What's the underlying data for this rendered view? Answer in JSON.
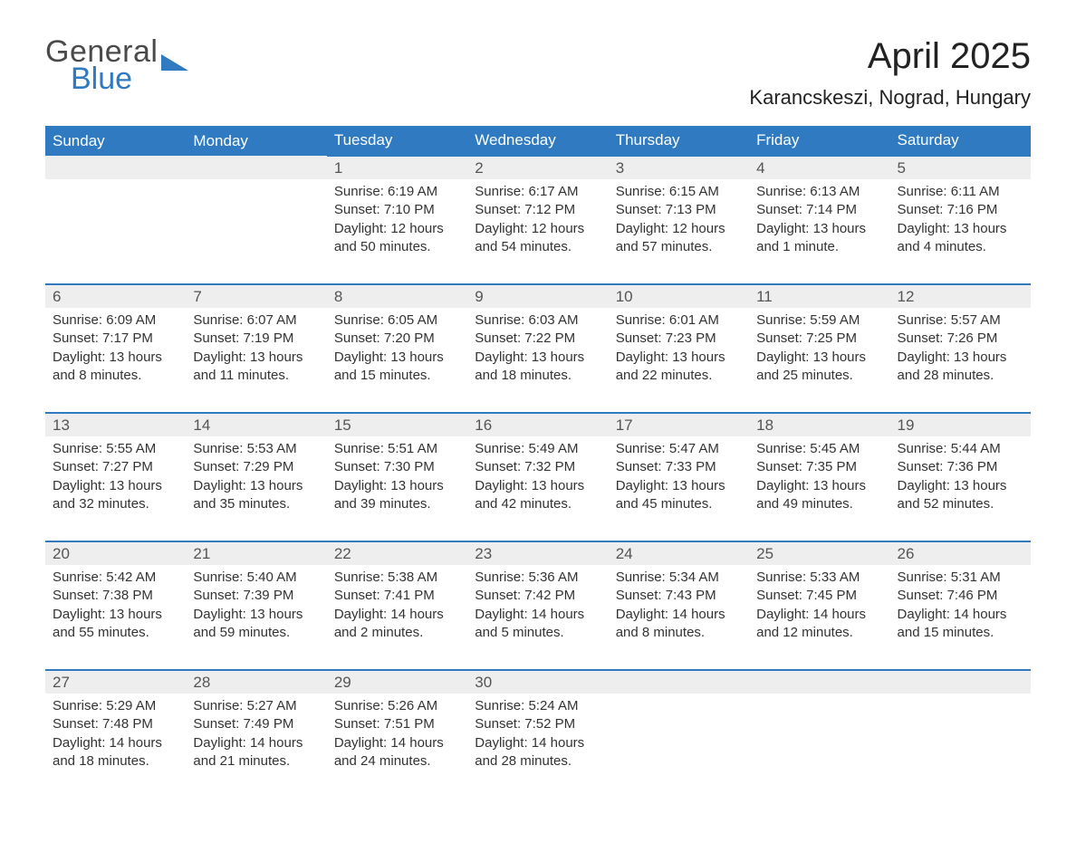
{
  "brand": {
    "part1": "General",
    "part2": "Blue",
    "logo_color": "#2f7ac0",
    "text_color": "#4a4a4a"
  },
  "header": {
    "month_title": "April 2025",
    "location": "Karancskeszi, Nograd, Hungary"
  },
  "calendar": {
    "type": "table",
    "columns": [
      "Sunday",
      "Monday",
      "Tuesday",
      "Wednesday",
      "Thursday",
      "Friday",
      "Saturday"
    ],
    "column_header_bg": "#2f7ac0",
    "column_header_color": "#ffffff",
    "daynum_row_bg": "#eeeeee",
    "row_separator_color": "#2f7ac0",
    "text_color": "#333333",
    "body_fontsize": 15,
    "header_fontsize": 17,
    "weeks": [
      [
        null,
        null,
        {
          "day": "1",
          "sunrise": "Sunrise: 6:19 AM",
          "sunset": "Sunset: 7:10 PM",
          "daylight": "Daylight: 12 hours and 50 minutes."
        },
        {
          "day": "2",
          "sunrise": "Sunrise: 6:17 AM",
          "sunset": "Sunset: 7:12 PM",
          "daylight": "Daylight: 12 hours and 54 minutes."
        },
        {
          "day": "3",
          "sunrise": "Sunrise: 6:15 AM",
          "sunset": "Sunset: 7:13 PM",
          "daylight": "Daylight: 12 hours and 57 minutes."
        },
        {
          "day": "4",
          "sunrise": "Sunrise: 6:13 AM",
          "sunset": "Sunset: 7:14 PM",
          "daylight": "Daylight: 13 hours and 1 minute."
        },
        {
          "day": "5",
          "sunrise": "Sunrise: 6:11 AM",
          "sunset": "Sunset: 7:16 PM",
          "daylight": "Daylight: 13 hours and 4 minutes."
        }
      ],
      [
        {
          "day": "6",
          "sunrise": "Sunrise: 6:09 AM",
          "sunset": "Sunset: 7:17 PM",
          "daylight": "Daylight: 13 hours and 8 minutes."
        },
        {
          "day": "7",
          "sunrise": "Sunrise: 6:07 AM",
          "sunset": "Sunset: 7:19 PM",
          "daylight": "Daylight: 13 hours and 11 minutes."
        },
        {
          "day": "8",
          "sunrise": "Sunrise: 6:05 AM",
          "sunset": "Sunset: 7:20 PM",
          "daylight": "Daylight: 13 hours and 15 minutes."
        },
        {
          "day": "9",
          "sunrise": "Sunrise: 6:03 AM",
          "sunset": "Sunset: 7:22 PM",
          "daylight": "Daylight: 13 hours and 18 minutes."
        },
        {
          "day": "10",
          "sunrise": "Sunrise: 6:01 AM",
          "sunset": "Sunset: 7:23 PM",
          "daylight": "Daylight: 13 hours and 22 minutes."
        },
        {
          "day": "11",
          "sunrise": "Sunrise: 5:59 AM",
          "sunset": "Sunset: 7:25 PM",
          "daylight": "Daylight: 13 hours and 25 minutes."
        },
        {
          "day": "12",
          "sunrise": "Sunrise: 5:57 AM",
          "sunset": "Sunset: 7:26 PM",
          "daylight": "Daylight: 13 hours and 28 minutes."
        }
      ],
      [
        {
          "day": "13",
          "sunrise": "Sunrise: 5:55 AM",
          "sunset": "Sunset: 7:27 PM",
          "daylight": "Daylight: 13 hours and 32 minutes."
        },
        {
          "day": "14",
          "sunrise": "Sunrise: 5:53 AM",
          "sunset": "Sunset: 7:29 PM",
          "daylight": "Daylight: 13 hours and 35 minutes."
        },
        {
          "day": "15",
          "sunrise": "Sunrise: 5:51 AM",
          "sunset": "Sunset: 7:30 PM",
          "daylight": "Daylight: 13 hours and 39 minutes."
        },
        {
          "day": "16",
          "sunrise": "Sunrise: 5:49 AM",
          "sunset": "Sunset: 7:32 PM",
          "daylight": "Daylight: 13 hours and 42 minutes."
        },
        {
          "day": "17",
          "sunrise": "Sunrise: 5:47 AM",
          "sunset": "Sunset: 7:33 PM",
          "daylight": "Daylight: 13 hours and 45 minutes."
        },
        {
          "day": "18",
          "sunrise": "Sunrise: 5:45 AM",
          "sunset": "Sunset: 7:35 PM",
          "daylight": "Daylight: 13 hours and 49 minutes."
        },
        {
          "day": "19",
          "sunrise": "Sunrise: 5:44 AM",
          "sunset": "Sunset: 7:36 PM",
          "daylight": "Daylight: 13 hours and 52 minutes."
        }
      ],
      [
        {
          "day": "20",
          "sunrise": "Sunrise: 5:42 AM",
          "sunset": "Sunset: 7:38 PM",
          "daylight": "Daylight: 13 hours and 55 minutes."
        },
        {
          "day": "21",
          "sunrise": "Sunrise: 5:40 AM",
          "sunset": "Sunset: 7:39 PM",
          "daylight": "Daylight: 13 hours and 59 minutes."
        },
        {
          "day": "22",
          "sunrise": "Sunrise: 5:38 AM",
          "sunset": "Sunset: 7:41 PM",
          "daylight": "Daylight: 14 hours and 2 minutes."
        },
        {
          "day": "23",
          "sunrise": "Sunrise: 5:36 AM",
          "sunset": "Sunset: 7:42 PM",
          "daylight": "Daylight: 14 hours and 5 minutes."
        },
        {
          "day": "24",
          "sunrise": "Sunrise: 5:34 AM",
          "sunset": "Sunset: 7:43 PM",
          "daylight": "Daylight: 14 hours and 8 minutes."
        },
        {
          "day": "25",
          "sunrise": "Sunrise: 5:33 AM",
          "sunset": "Sunset: 7:45 PM",
          "daylight": "Daylight: 14 hours and 12 minutes."
        },
        {
          "day": "26",
          "sunrise": "Sunrise: 5:31 AM",
          "sunset": "Sunset: 7:46 PM",
          "daylight": "Daylight: 14 hours and 15 minutes."
        }
      ],
      [
        {
          "day": "27",
          "sunrise": "Sunrise: 5:29 AM",
          "sunset": "Sunset: 7:48 PM",
          "daylight": "Daylight: 14 hours and 18 minutes."
        },
        {
          "day": "28",
          "sunrise": "Sunrise: 5:27 AM",
          "sunset": "Sunset: 7:49 PM",
          "daylight": "Daylight: 14 hours and 21 minutes."
        },
        {
          "day": "29",
          "sunrise": "Sunrise: 5:26 AM",
          "sunset": "Sunset: 7:51 PM",
          "daylight": "Daylight: 14 hours and 24 minutes."
        },
        {
          "day": "30",
          "sunrise": "Sunrise: 5:24 AM",
          "sunset": "Sunset: 7:52 PM",
          "daylight": "Daylight: 14 hours and 28 minutes."
        },
        null,
        null,
        null
      ]
    ]
  }
}
